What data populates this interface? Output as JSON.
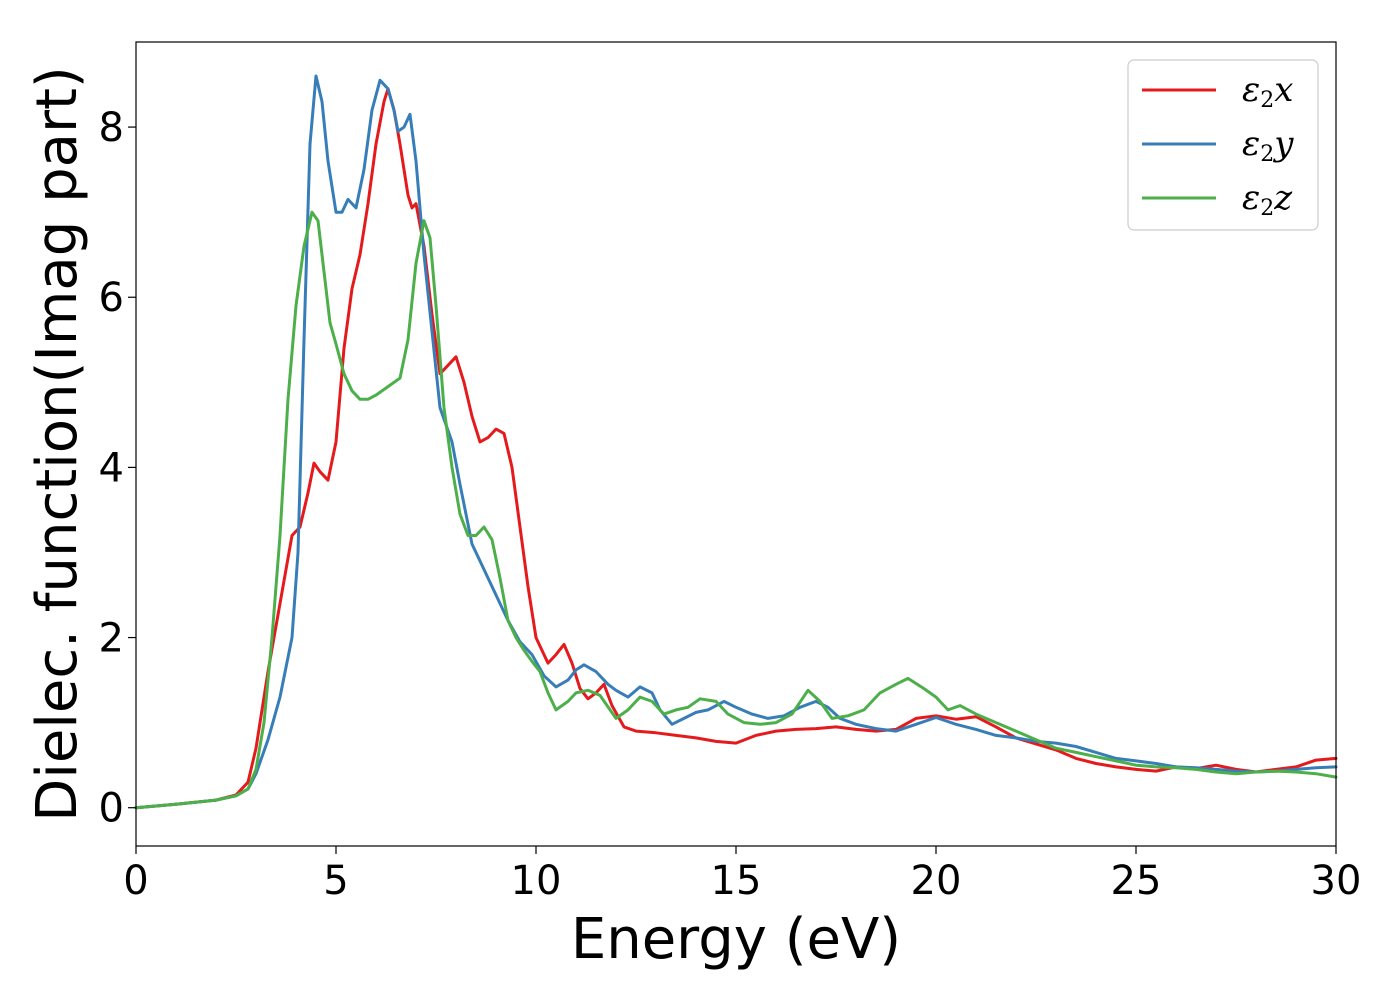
{
  "chart_data": {
    "type": "line",
    "xlabel": "Energy (eV)",
    "ylabel": "Dielec. function(Imag part)",
    "xlim": [
      0,
      30
    ],
    "ylim": [
      -0.45,
      9.0
    ],
    "xticks": [
      0,
      5,
      10,
      15,
      20,
      25,
      30
    ],
    "yticks": [
      0,
      2,
      4,
      6,
      8
    ],
    "grid": false,
    "legend_position": "top-right",
    "series": [
      {
        "name": "ε2x",
        "legend": {
          "base": "ε",
          "sub": "2",
          "suffix": "x"
        },
        "color": "#e41a1c",
        "points": [
          [
            0,
            0
          ],
          [
            1,
            0.04
          ],
          [
            2,
            0.09
          ],
          [
            2.5,
            0.15
          ],
          [
            2.8,
            0.3
          ],
          [
            3.0,
            0.7
          ],
          [
            3.3,
            1.6
          ],
          [
            3.6,
            2.4
          ],
          [
            3.9,
            3.2
          ],
          [
            4.1,
            3.3
          ],
          [
            4.3,
            3.7
          ],
          [
            4.45,
            4.05
          ],
          [
            4.6,
            3.95
          ],
          [
            4.8,
            3.85
          ],
          [
            5.0,
            4.3
          ],
          [
            5.2,
            5.4
          ],
          [
            5.4,
            6.1
          ],
          [
            5.6,
            6.5
          ],
          [
            5.8,
            7.1
          ],
          [
            6.0,
            7.8
          ],
          [
            6.2,
            8.3
          ],
          [
            6.3,
            8.45
          ],
          [
            6.45,
            8.2
          ],
          [
            6.6,
            7.8
          ],
          [
            6.8,
            7.2
          ],
          [
            6.9,
            7.05
          ],
          [
            7.0,
            7.1
          ],
          [
            7.2,
            6.6
          ],
          [
            7.4,
            5.8
          ],
          [
            7.6,
            5.1
          ],
          [
            7.8,
            5.2
          ],
          [
            8.0,
            5.3
          ],
          [
            8.2,
            5.0
          ],
          [
            8.4,
            4.6
          ],
          [
            8.6,
            4.3
          ],
          [
            8.8,
            4.35
          ],
          [
            9.0,
            4.45
          ],
          [
            9.2,
            4.4
          ],
          [
            9.4,
            4.0
          ],
          [
            9.6,
            3.3
          ],
          [
            9.8,
            2.6
          ],
          [
            10.0,
            2.0
          ],
          [
            10.3,
            1.7
          ],
          [
            10.5,
            1.8
          ],
          [
            10.7,
            1.92
          ],
          [
            10.9,
            1.7
          ],
          [
            11.1,
            1.4
          ],
          [
            11.3,
            1.28
          ],
          [
            11.5,
            1.35
          ],
          [
            11.7,
            1.45
          ],
          [
            11.9,
            1.2
          ],
          [
            12.2,
            0.95
          ],
          [
            12.5,
            0.9
          ],
          [
            13,
            0.88
          ],
          [
            13.5,
            0.85
          ],
          [
            14,
            0.82
          ],
          [
            14.5,
            0.78
          ],
          [
            15,
            0.76
          ],
          [
            15.5,
            0.85
          ],
          [
            16,
            0.9
          ],
          [
            16.5,
            0.92
          ],
          [
            17,
            0.93
          ],
          [
            17.5,
            0.95
          ],
          [
            18,
            0.92
          ],
          [
            18.5,
            0.9
          ],
          [
            19,
            0.92
          ],
          [
            19.5,
            1.05
          ],
          [
            20,
            1.08
          ],
          [
            20.5,
            1.04
          ],
          [
            21,
            1.07
          ],
          [
            21.5,
            0.95
          ],
          [
            22,
            0.82
          ],
          [
            22.5,
            0.75
          ],
          [
            23,
            0.68
          ],
          [
            23.5,
            0.58
          ],
          [
            24,
            0.52
          ],
          [
            24.5,
            0.48
          ],
          [
            25,
            0.45
          ],
          [
            25.5,
            0.43
          ],
          [
            26,
            0.48
          ],
          [
            26.5,
            0.46
          ],
          [
            27,
            0.5
          ],
          [
            27.5,
            0.45
          ],
          [
            28,
            0.42
          ],
          [
            28.5,
            0.45
          ],
          [
            29,
            0.48
          ],
          [
            29.5,
            0.56
          ],
          [
            30,
            0.58
          ]
        ]
      },
      {
        "name": "ε2y",
        "legend": {
          "base": "ε",
          "sub": "2",
          "suffix": "y"
        },
        "color": "#377eb8",
        "points": [
          [
            0,
            0
          ],
          [
            1,
            0.04
          ],
          [
            2,
            0.09
          ],
          [
            2.5,
            0.14
          ],
          [
            2.8,
            0.22
          ],
          [
            3.0,
            0.4
          ],
          [
            3.3,
            0.8
          ],
          [
            3.6,
            1.3
          ],
          [
            3.9,
            2.0
          ],
          [
            4.05,
            3.0
          ],
          [
            4.2,
            5.5
          ],
          [
            4.35,
            7.8
          ],
          [
            4.5,
            8.6
          ],
          [
            4.65,
            8.3
          ],
          [
            4.8,
            7.6
          ],
          [
            5.0,
            7.0
          ],
          [
            5.15,
            7.0
          ],
          [
            5.3,
            7.15
          ],
          [
            5.5,
            7.05
          ],
          [
            5.7,
            7.5
          ],
          [
            5.9,
            8.2
          ],
          [
            6.1,
            8.55
          ],
          [
            6.3,
            8.45
          ],
          [
            6.45,
            8.2
          ],
          [
            6.55,
            7.95
          ],
          [
            6.7,
            8.0
          ],
          [
            6.85,
            8.15
          ],
          [
            7.0,
            7.6
          ],
          [
            7.2,
            6.5
          ],
          [
            7.4,
            5.6
          ],
          [
            7.6,
            4.7
          ],
          [
            7.9,
            4.3
          ],
          [
            8.1,
            3.8
          ],
          [
            8.4,
            3.1
          ],
          [
            8.7,
            2.8
          ],
          [
            9.0,
            2.5
          ],
          [
            9.3,
            2.2
          ],
          [
            9.6,
            1.95
          ],
          [
            9.9,
            1.8
          ],
          [
            10.2,
            1.55
          ],
          [
            10.5,
            1.42
          ],
          [
            10.8,
            1.5
          ],
          [
            11.0,
            1.62
          ],
          [
            11.2,
            1.68
          ],
          [
            11.5,
            1.6
          ],
          [
            11.8,
            1.45
          ],
          [
            12.0,
            1.38
          ],
          [
            12.3,
            1.3
          ],
          [
            12.6,
            1.42
          ],
          [
            12.9,
            1.35
          ],
          [
            13.1,
            1.15
          ],
          [
            13.4,
            0.98
          ],
          [
            13.7,
            1.05
          ],
          [
            14.0,
            1.12
          ],
          [
            14.3,
            1.15
          ],
          [
            14.7,
            1.25
          ],
          [
            15.0,
            1.18
          ],
          [
            15.4,
            1.1
          ],
          [
            15.8,
            1.05
          ],
          [
            16.2,
            1.08
          ],
          [
            16.6,
            1.18
          ],
          [
            17.0,
            1.25
          ],
          [
            17.3,
            1.18
          ],
          [
            17.6,
            1.05
          ],
          [
            18.0,
            0.98
          ],
          [
            18.5,
            0.93
          ],
          [
            19.0,
            0.9
          ],
          [
            19.5,
            0.98
          ],
          [
            20.0,
            1.06
          ],
          [
            20.5,
            0.98
          ],
          [
            21.0,
            0.92
          ],
          [
            21.5,
            0.85
          ],
          [
            22,
            0.82
          ],
          [
            22.5,
            0.78
          ],
          [
            23,
            0.76
          ],
          [
            23.5,
            0.72
          ],
          [
            24,
            0.65
          ],
          [
            24.5,
            0.58
          ],
          [
            25,
            0.55
          ],
          [
            25.5,
            0.52
          ],
          [
            26,
            0.48
          ],
          [
            26.5,
            0.47
          ],
          [
            27,
            0.45
          ],
          [
            27.5,
            0.43
          ],
          [
            28,
            0.42
          ],
          [
            28.5,
            0.43
          ],
          [
            29,
            0.45
          ],
          [
            29.5,
            0.47
          ],
          [
            30,
            0.48
          ]
        ]
      },
      {
        "name": "ε2z",
        "legend": {
          "base": "ε",
          "sub": "2",
          "suffix": "z"
        },
        "color": "#4daf4a",
        "points": [
          [
            0,
            0
          ],
          [
            1,
            0.04
          ],
          [
            2,
            0.09
          ],
          [
            2.5,
            0.14
          ],
          [
            2.8,
            0.22
          ],
          [
            3.0,
            0.45
          ],
          [
            3.2,
            1.0
          ],
          [
            3.4,
            2.0
          ],
          [
            3.6,
            3.2
          ],
          [
            3.8,
            4.8
          ],
          [
            4.0,
            5.9
          ],
          [
            4.2,
            6.6
          ],
          [
            4.4,
            7.0
          ],
          [
            4.55,
            6.9
          ],
          [
            4.7,
            6.3
          ],
          [
            4.85,
            5.7
          ],
          [
            5.0,
            5.45
          ],
          [
            5.2,
            5.1
          ],
          [
            5.4,
            4.9
          ],
          [
            5.6,
            4.8
          ],
          [
            5.8,
            4.8
          ],
          [
            6.0,
            4.85
          ],
          [
            6.3,
            4.95
          ],
          [
            6.6,
            5.05
          ],
          [
            6.8,
            5.5
          ],
          [
            7.0,
            6.4
          ],
          [
            7.2,
            6.9
          ],
          [
            7.35,
            6.7
          ],
          [
            7.5,
            5.9
          ],
          [
            7.7,
            4.7
          ],
          [
            7.9,
            4.0
          ],
          [
            8.1,
            3.45
          ],
          [
            8.3,
            3.2
          ],
          [
            8.5,
            3.2
          ],
          [
            8.7,
            3.3
          ],
          [
            8.9,
            3.15
          ],
          [
            9.1,
            2.7
          ],
          [
            9.3,
            2.2
          ],
          [
            9.5,
            2.0
          ],
          [
            9.7,
            1.85
          ],
          [
            9.9,
            1.72
          ],
          [
            10.1,
            1.6
          ],
          [
            10.3,
            1.35
          ],
          [
            10.5,
            1.15
          ],
          [
            10.8,
            1.25
          ],
          [
            11.0,
            1.35
          ],
          [
            11.3,
            1.38
          ],
          [
            11.6,
            1.32
          ],
          [
            12.0,
            1.05
          ],
          [
            12.3,
            1.15
          ],
          [
            12.6,
            1.3
          ],
          [
            12.9,
            1.25
          ],
          [
            13.2,
            1.1
          ],
          [
            13.5,
            1.15
          ],
          [
            13.8,
            1.18
          ],
          [
            14.1,
            1.28
          ],
          [
            14.5,
            1.25
          ],
          [
            14.8,
            1.1
          ],
          [
            15.2,
            1.0
          ],
          [
            15.6,
            0.98
          ],
          [
            16.0,
            1.0
          ],
          [
            16.4,
            1.1
          ],
          [
            16.8,
            1.38
          ],
          [
            17.1,
            1.25
          ],
          [
            17.4,
            1.05
          ],
          [
            17.8,
            1.08
          ],
          [
            18.2,
            1.15
          ],
          [
            18.6,
            1.35
          ],
          [
            19.0,
            1.45
          ],
          [
            19.3,
            1.52
          ],
          [
            19.7,
            1.4
          ],
          [
            20.0,
            1.3
          ],
          [
            20.3,
            1.15
          ],
          [
            20.6,
            1.2
          ],
          [
            21.0,
            1.1
          ],
          [
            21.5,
            1.0
          ],
          [
            22,
            0.9
          ],
          [
            22.5,
            0.8
          ],
          [
            23,
            0.7
          ],
          [
            23.5,
            0.65
          ],
          [
            24,
            0.6
          ],
          [
            24.5,
            0.55
          ],
          [
            25,
            0.5
          ],
          [
            25.5,
            0.48
          ],
          [
            26,
            0.47
          ],
          [
            26.5,
            0.45
          ],
          [
            27,
            0.42
          ],
          [
            27.5,
            0.4
          ],
          [
            28,
            0.42
          ],
          [
            28.5,
            0.43
          ],
          [
            29,
            0.42
          ],
          [
            29.5,
            0.4
          ],
          [
            30,
            0.36
          ]
        ]
      }
    ]
  }
}
